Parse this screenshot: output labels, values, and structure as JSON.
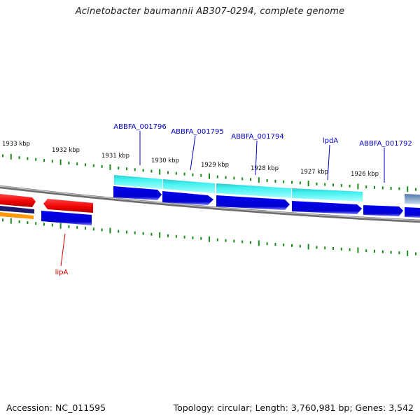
{
  "title": "Acinetobacter baumannii AB307-0294, complete genome",
  "footer": {
    "accession": "Accession: NC_011595",
    "summary": "Topology: circular; Length: 3,760,981 bp; Genes: 3,542"
  },
  "colors": {
    "backbone": "#777777",
    "tick": "#1a8a1a",
    "gene_label_blue": "#0000cc",
    "gene_label_red": "#dd0000",
    "cds_blue": "#0000dd",
    "cds_cyan": "#22dddd",
    "cds_red": "#ee1111",
    "cds_navy": "#1a1a6e",
    "cds_orange": "#ff9900"
  },
  "ticks": [
    {
      "label": "1933 kbp"
    },
    {
      "label": "1932 kbp"
    },
    {
      "label": "1931 kbp"
    },
    {
      "label": "1930 kbp"
    },
    {
      "label": "1929 kbp"
    },
    {
      "label": "1928 kbp"
    },
    {
      "label": "1927 kbp"
    },
    {
      "label": "1926 kbp"
    }
  ],
  "gene_labels": [
    {
      "text": "ABBFA_001796",
      "color": "gene_label_blue"
    },
    {
      "text": "ABBFA_001795",
      "color": "gene_label_blue"
    },
    {
      "text": "ABBFA_001794",
      "color": "gene_label_blue"
    },
    {
      "text": "lpdA",
      "color": "gene_label_blue"
    },
    {
      "text": "ABBFA_001792",
      "color": "gene_label_blue"
    },
    {
      "text": "lipA",
      "color": "gene_label_red"
    }
  ]
}
